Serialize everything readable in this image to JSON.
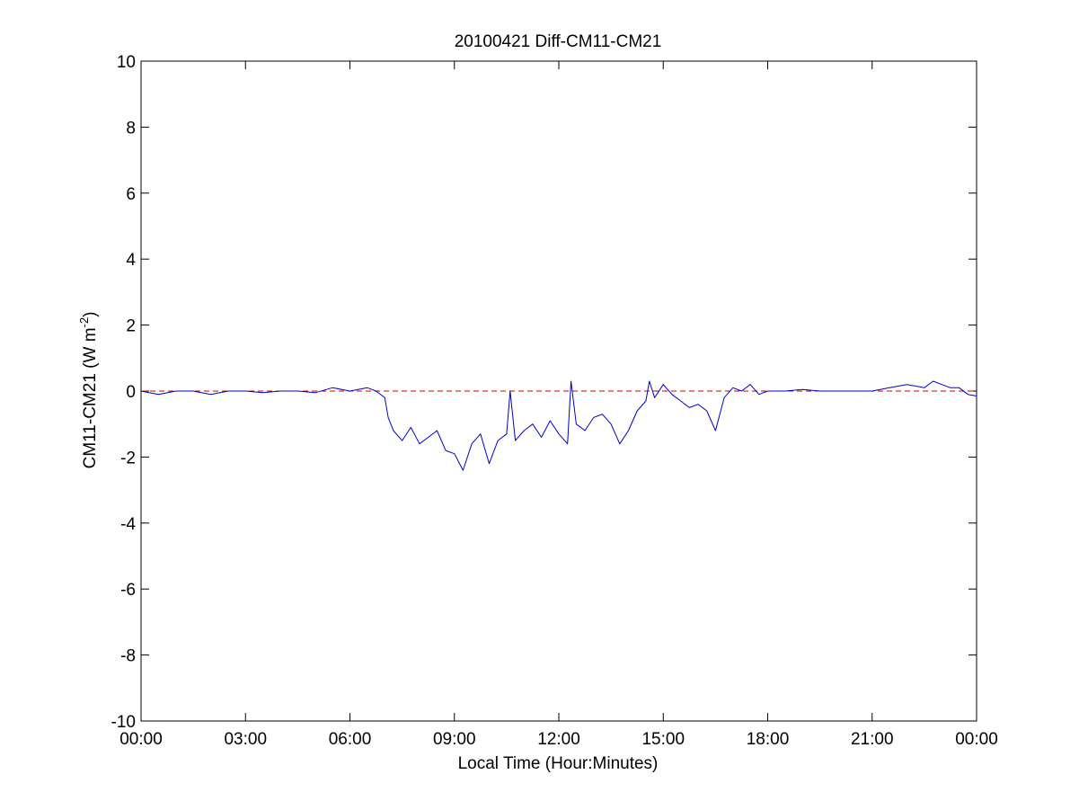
{
  "chart_data": {
    "type": "line",
    "title": "20100421 Diff-CM11-CM21",
    "xlabel": "Local Time (Hour:Minutes)",
    "ylabel": "CM11-CM21 (W m",
    "ylabel_superscript": "-2",
    "ylabel_suffix": ")",
    "xlim": [
      0,
      24
    ],
    "ylim": [
      -10,
      10
    ],
    "x_unit": "hours",
    "xticks": [
      0,
      3,
      6,
      9,
      12,
      15,
      18,
      21,
      24
    ],
    "xtick_labels": [
      "00:00",
      "03:00",
      "06:00",
      "09:00",
      "12:00",
      "15:00",
      "18:00",
      "21:00",
      "00:00"
    ],
    "yticks": [
      -10,
      -8,
      -6,
      -4,
      -2,
      0,
      2,
      4,
      6,
      8,
      10
    ],
    "ytick_labels": [
      "-10",
      "-8",
      "-6",
      "-4",
      "-2",
      "0",
      "2",
      "4",
      "6",
      "8",
      "10"
    ],
    "grid": false,
    "reference_line": {
      "y": 0,
      "color": "#cc0000",
      "style": "dashed"
    },
    "series": [
      {
        "color": "#0000cc",
        "x": [
          0,
          0.5,
          1,
          1.5,
          2,
          2.5,
          3,
          3.5,
          4,
          4.5,
          5,
          5.5,
          6,
          6.5,
          6.75,
          7,
          7.1,
          7.25,
          7.5,
          7.75,
          8,
          8.25,
          8.5,
          8.75,
          9,
          9.25,
          9.5,
          9.75,
          10,
          10.25,
          10.5,
          10.6,
          10.75,
          11,
          11.25,
          11.5,
          11.75,
          12,
          12.25,
          12.35,
          12.5,
          12.75,
          13,
          13.25,
          13.5,
          13.75,
          14,
          14.25,
          14.5,
          14.6,
          14.75,
          15,
          15.25,
          15.5,
          15.75,
          16,
          16.25,
          16.5,
          16.75,
          17,
          17.25,
          17.5,
          17.75,
          18,
          18.5,
          19,
          19.5,
          20,
          20.5,
          21,
          21.5,
          22,
          22.5,
          22.75,
          23,
          23.25,
          23.5,
          23.75,
          24
        ],
        "y": [
          0,
          -0.1,
          0,
          0,
          -0.1,
          0,
          0,
          -0.05,
          0,
          0,
          -0.05,
          0.1,
          0,
          0.1,
          0,
          -0.2,
          -0.8,
          -1.2,
          -1.5,
          -1.1,
          -1.6,
          -1.4,
          -1.2,
          -1.8,
          -1.9,
          -2.4,
          -1.6,
          -1.3,
          -2.2,
          -1.5,
          -1.3,
          0,
          -1.5,
          -1.2,
          -1.0,
          -1.4,
          -0.9,
          -1.3,
          -1.6,
          0.3,
          -1.0,
          -1.2,
          -0.8,
          -0.7,
          -1.0,
          -1.6,
          -1.2,
          -0.6,
          -0.3,
          0.3,
          -0.2,
          0.2,
          -0.1,
          -0.3,
          -0.5,
          -0.4,
          -0.6,
          -1.2,
          -0.2,
          0.1,
          0,
          0.2,
          -0.1,
          0,
          0,
          0.05,
          0,
          0,
          0,
          0,
          0.1,
          0.2,
          0.1,
          0.3,
          0.2,
          0.1,
          0.1,
          -0.1,
          -0.15
        ]
      }
    ]
  }
}
